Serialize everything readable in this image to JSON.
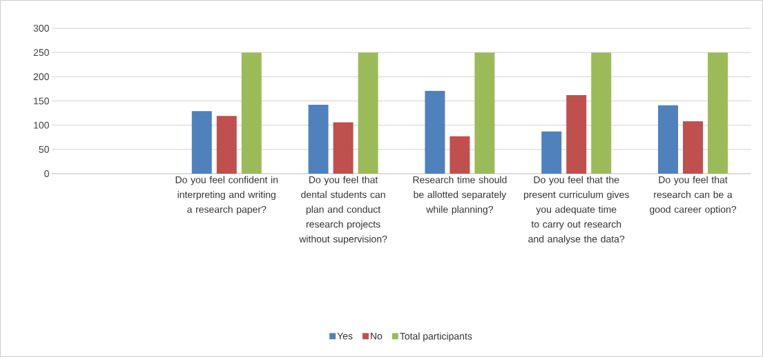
{
  "chart_data": {
    "type": "bar",
    "categories": [
      null,
      "Do you feel confident in interpreting and writing a research paper?",
      "Do you feel that dental students can plan and conduct research projects without supervision?",
      "Research time should be allotted separately while planning?",
      "Do you feel that the present curriculum gives you adequate time to carry out research and analyse the data?",
      "Do you feel that research can be a good career option?"
    ],
    "series": [
      {
        "name": "Yes",
        "color": "#4f81bd",
        "values": [
          null,
          129,
          142,
          171,
          87,
          141
        ]
      },
      {
        "name": "No",
        "color": "#c0504d",
        "values": [
          null,
          119,
          106,
          77,
          162,
          108
        ]
      },
      {
        "name": "Total participants",
        "color": "#9bbb59",
        "values": [
          null,
          250,
          250,
          250,
          250,
          250
        ]
      }
    ],
    "ylim": [
      0,
      300
    ],
    "yticks": [
      0,
      50,
      100,
      150,
      200,
      250,
      300
    ],
    "grid": "y",
    "legend": "bottom"
  }
}
